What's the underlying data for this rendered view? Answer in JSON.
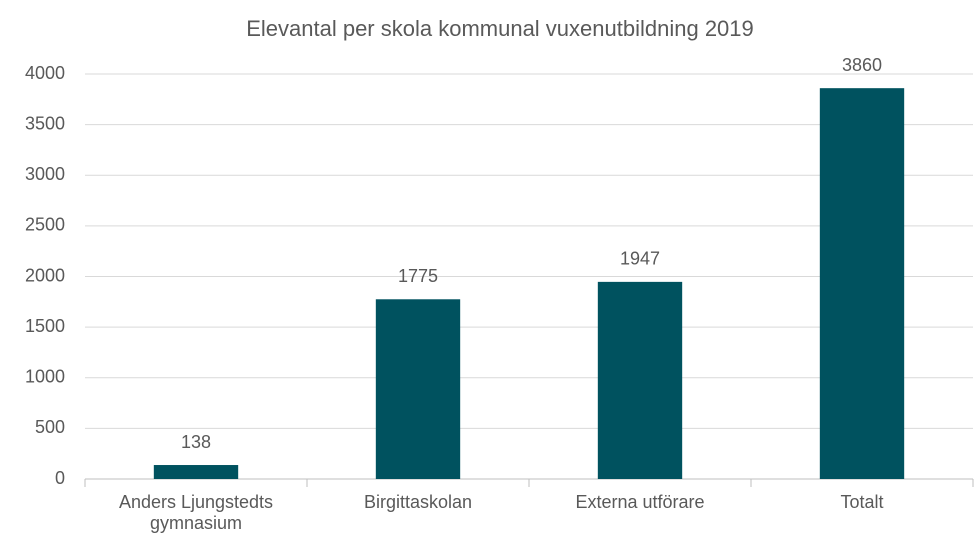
{
  "chart_data": {
    "type": "bar",
    "title": "Elevantal per skola kommunal vuxenutbildning 2019",
    "categories": [
      "Anders Ljungstedts gymnasium",
      "Birgittaskolan",
      "Externa utförare",
      "Totalt"
    ],
    "values": [
      138,
      1775,
      1947,
      3860
    ],
    "color": "#00525f",
    "ylim": [
      0,
      4000
    ],
    "yticks": [
      0,
      500,
      1000,
      1500,
      2000,
      2500,
      3000,
      3500,
      4000
    ],
    "grid": true,
    "show_values": true
  }
}
